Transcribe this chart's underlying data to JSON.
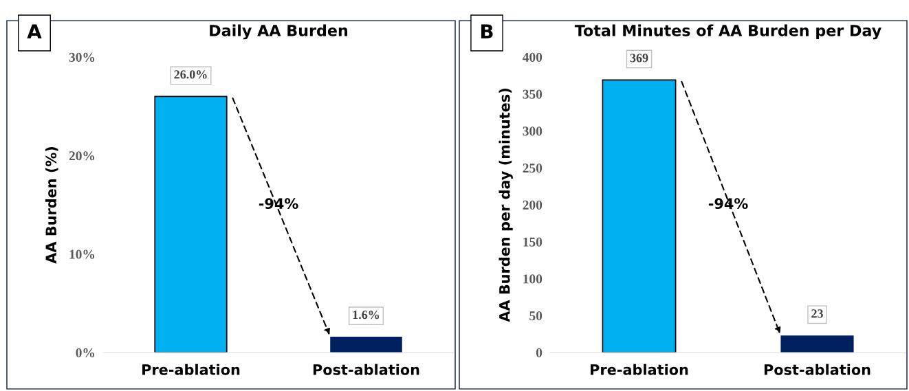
{
  "chart_data": [
    {
      "type": "bar",
      "title": "Daily AA Burden",
      "ylabel": "AA Burden (%)",
      "categories": [
        "Pre-ablation",
        "Post-ablation"
      ],
      "values": [
        26.0,
        1.6
      ],
      "colors": [
        "#00b0f0",
        "#002060"
      ],
      "value_labels": [
        "26.0%",
        "1.6%"
      ],
      "ylim": [
        0,
        30
      ],
      "yticks": [
        {
          "value": 0,
          "label": "0%"
        },
        {
          "value": 10,
          "label": "10%"
        },
        {
          "value": 20,
          "label": "20%"
        },
        {
          "value": 30,
          "label": "30%"
        }
      ],
      "annotations": [
        "A",
        "-94%"
      ]
    },
    {
      "type": "bar",
      "title": "Total Minutes of AA Burden per Day",
      "ylabel": "AA Burden per day (minutes)",
      "categories": [
        "Pre-ablation",
        "Post-ablation"
      ],
      "values": [
        369,
        23
      ],
      "colors": [
        "#00b0f0",
        "#002060"
      ],
      "data_labels": true,
      "ylim": [
        0,
        400
      ],
      "yticks": [
        0,
        50,
        100,
        150,
        200,
        250,
        300,
        350,
        400
      ],
      "annotations": [
        "B",
        "-94%"
      ]
    }
  ]
}
